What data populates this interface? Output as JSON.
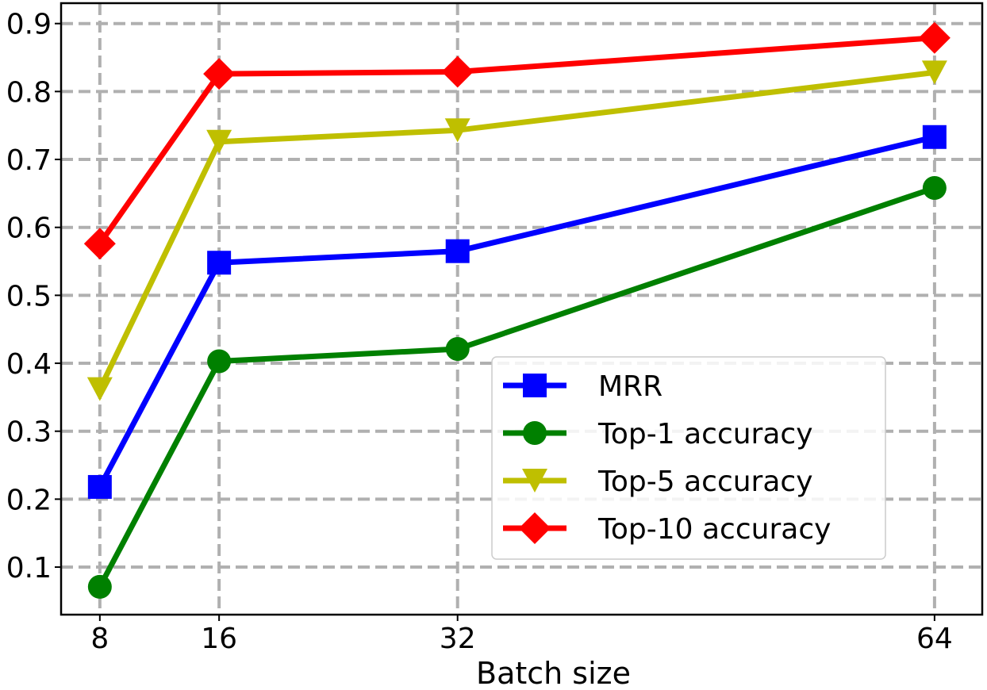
{
  "chart_data": {
    "type": "line",
    "xlabel": "Batch size",
    "ylabel": "",
    "x": [
      8,
      16,
      32,
      64
    ],
    "xticks": [
      "8",
      "16",
      "32",
      "64"
    ],
    "xlim": [
      5.4,
      67.2
    ],
    "ylim": [
      0.03,
      0.93
    ],
    "yticks": [
      0.1,
      0.2,
      0.3,
      0.4,
      0.5,
      0.6,
      0.7,
      0.8,
      0.9
    ],
    "ytick_labels": [
      "0.1",
      "0.2",
      "0.3",
      "0.4",
      "0.5",
      "0.6",
      "0.7",
      "0.8",
      "0.9"
    ],
    "grid": true,
    "legend_position": "lower-right",
    "series": [
      {
        "name": "MRR",
        "values": [
          0.218,
          0.548,
          0.565,
          0.733
        ],
        "color": "#0000ff",
        "marker": "square"
      },
      {
        "name": "Top-1 accuracy",
        "values": [
          0.071,
          0.403,
          0.421,
          0.658
        ],
        "color": "#008000",
        "marker": "circle"
      },
      {
        "name": "Top-5 accuracy",
        "values": [
          0.362,
          0.726,
          0.743,
          0.828
        ],
        "color": "#bfbf00",
        "marker": "triangle-down"
      },
      {
        "name": "Top-10 accuracy",
        "values": [
          0.576,
          0.826,
          0.829,
          0.879
        ],
        "color": "#ff0000",
        "marker": "diamond"
      }
    ]
  }
}
